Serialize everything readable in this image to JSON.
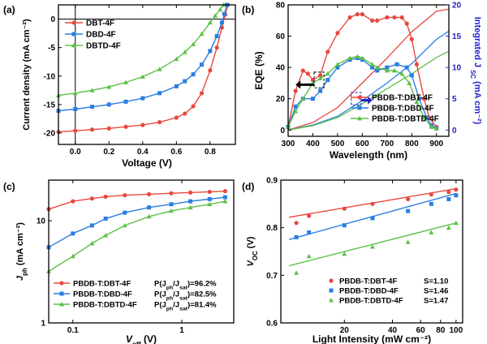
{
  "colors": {
    "red": "#e8483f",
    "blue": "#2a7ee0",
    "green": "#5cc048",
    "axis": "#000000",
    "right_axis": "#2222cc"
  },
  "chart_data": [
    {
      "panel_label": "(a)",
      "type": "line",
      "xlabel": "Voltage (V)",
      "ylabel": "Current density (mA cm⁻²)",
      "xlim": [
        -0.1,
        0.95
      ],
      "ylim": [
        -22,
        2.5
      ],
      "xticks": [
        0.0,
        0.2,
        0.4,
        0.6,
        0.8
      ],
      "xtick_labels": [
        "0.0",
        "0.2",
        "0.4",
        "0.6",
        "0.8"
      ],
      "yticks": [
        -20,
        -15,
        -10,
        -5,
        0
      ],
      "ytick_labels": [
        "-20",
        "-15",
        "-10",
        "-5",
        "0"
      ],
      "legend_position": "top-left",
      "series": [
        {
          "name": "DBT-4F",
          "color": "red",
          "marker": "circle",
          "x": [
            -0.1,
            0.0,
            0.1,
            0.2,
            0.3,
            0.4,
            0.5,
            0.6,
            0.65,
            0.7,
            0.75,
            0.8,
            0.84,
            0.87,
            0.89,
            0.905
          ],
          "y": [
            -19.8,
            -19.6,
            -19.4,
            -19.2,
            -18.9,
            -18.6,
            -18.1,
            -17.3,
            -16.6,
            -15.3,
            -13.0,
            -9.0,
            -5.0,
            -1.5,
            0.8,
            2.5
          ]
        },
        {
          "name": "DBD-4F",
          "color": "blue",
          "marker": "square",
          "x": [
            -0.1,
            0.0,
            0.1,
            0.2,
            0.3,
            0.4,
            0.5,
            0.6,
            0.65,
            0.7,
            0.75,
            0.8,
            0.84,
            0.87,
            0.885,
            0.9
          ],
          "y": [
            -16.1,
            -15.8,
            -15.4,
            -15.0,
            -14.5,
            -13.9,
            -13.0,
            -11.8,
            -10.9,
            -9.7,
            -8.0,
            -5.6,
            -3.0,
            -0.6,
            0.9,
            2.5
          ]
        },
        {
          "name": "DBTD-4F",
          "color": "green",
          "marker": "triangle",
          "x": [
            -0.1,
            0.0,
            0.1,
            0.2,
            0.3,
            0.4,
            0.5,
            0.6,
            0.65,
            0.7,
            0.75,
            0.8,
            0.83,
            0.86,
            0.88
          ],
          "y": [
            -13.4,
            -13.0,
            -12.5,
            -11.9,
            -11.1,
            -10.1,
            -8.8,
            -7.0,
            -5.8,
            -4.4,
            -2.6,
            -0.6,
            0.6,
            1.7,
            2.5
          ]
        }
      ]
    },
    {
      "panel_label": "(b)",
      "type": "line",
      "xlabel": "Wavelength (nm)",
      "ylabel": "EQE (%)",
      "ylabel_right": "Integrated J",
      "ylabel_right_sub": "SC",
      "ylabel_right_unit": "(mA cm⁻²)",
      "xlim": [
        300,
        950
      ],
      "ylim": [
        -4,
        80
      ],
      "ylim_right": [
        -1,
        20
      ],
      "xticks": [
        300,
        400,
        500,
        600,
        700,
        800,
        900
      ],
      "xtick_labels": [
        "300",
        "400",
        "500",
        "600",
        "700",
        "800",
        "900"
      ],
      "yticks": [
        0,
        20,
        40,
        60,
        80
      ],
      "ytick_labels": [
        "0",
        "20",
        "40",
        "60",
        "80"
      ],
      "yticks_right": [
        0,
        5,
        10,
        15,
        20
      ],
      "ytick_labels_right": [
        "0",
        "5",
        "10",
        "15",
        "20"
      ],
      "legend_position": "bottom-center",
      "series": [
        {
          "name": "PBDB-T:DBT-4F",
          "color": "red",
          "marker": "circle",
          "x": [
            300,
            330,
            360,
            380,
            400,
            430,
            460,
            500,
            550,
            580,
            600,
            640,
            660,
            700,
            730,
            760,
            780,
            800,
            820,
            850,
            870,
            900
          ],
          "y": [
            2,
            25,
            38,
            36,
            32,
            35,
            50,
            62,
            72,
            74,
            74,
            70,
            70,
            72,
            72,
            72,
            68,
            58,
            42,
            20,
            8,
            2
          ]
        },
        {
          "name": "PBDB-T:DBD-4F",
          "color": "blue",
          "marker": "square",
          "x": [
            300,
            330,
            360,
            400,
            430,
            460,
            500,
            550,
            580,
            600,
            640,
            660,
            700,
            740,
            780,
            800,
            830,
            860,
            880,
            900
          ],
          "y": [
            2,
            15,
            20,
            20,
            25,
            32,
            40,
            45,
            46,
            45,
            40,
            38,
            40,
            42,
            40,
            35,
            20,
            8,
            3,
            1
          ]
        },
        {
          "name": "PBDB-T:DBTD-4F",
          "color": "green",
          "marker": "triangle",
          "x": [
            300,
            330,
            360,
            400,
            430,
            460,
            500,
            550,
            580,
            600,
            640,
            660,
            700,
            730,
            760,
            790,
            820,
            850,
            880,
            900
          ],
          "y": [
            2,
            12,
            20,
            30,
            33,
            36,
            42,
            46,
            47,
            46,
            42,
            40,
            38,
            38,
            36,
            30,
            18,
            8,
            2,
            1
          ]
        }
      ],
      "integrated_series": [
        {
          "name": "PBDB-T:DBT-4F",
          "color": "red",
          "x": [
            300,
            400,
            500,
            600,
            700,
            800,
            900,
            950
          ],
          "y": [
            0,
            1.2,
            3.6,
            7.5,
            11.5,
            15.7,
            19.0,
            19.3
          ]
        },
        {
          "name": "PBDB-T:DBD-4F",
          "color": "blue",
          "x": [
            300,
            400,
            500,
            600,
            700,
            800,
            900,
            950
          ],
          "y": [
            0,
            0.8,
            2.2,
            4.7,
            7.5,
            10.6,
            14.5,
            15.8
          ]
        },
        {
          "name": "PBDB-T:DBTD-4F",
          "color": "green",
          "x": [
            300,
            400,
            500,
            600,
            700,
            800,
            900,
            950
          ],
          "y": [
            0,
            0.7,
            2.0,
            4.2,
            6.6,
            9.0,
            11.6,
            12.6
          ]
        }
      ]
    },
    {
      "panel_label": "(c)",
      "type": "scatter",
      "xlabel": "V",
      "xlabel_sub": "eff",
      "xlabel_unit": " (V)",
      "ylabel": "J",
      "ylabel_sub": "ph",
      "ylabel_unit": " (mA cm⁻²)",
      "xscale": "log",
      "yscale": "log",
      "xlim": [
        0.06,
        3
      ],
      "ylim": [
        1,
        25
      ],
      "xticks": [
        0.1,
        1
      ],
      "xtick_labels": [
        "0.1",
        "1"
      ],
      "yticks": [
        1,
        10
      ],
      "ytick_labels": [
        "1",
        "10"
      ],
      "legend_position": "bottom-left",
      "series": [
        {
          "name": "PBDB-T:DBT-4F",
          "annotation": "P(J",
          "annotation_sub1": "ph",
          "annotation_mid": "/J",
          "annotation_sub2": "sat",
          "annotation_end": ")=96.2%",
          "color": "red",
          "marker": "circle",
          "x": [
            0.06,
            0.1,
            0.15,
            0.2,
            0.3,
            0.5,
            0.8,
            1.2,
            1.8,
            2.5
          ],
          "y": [
            13,
            15.5,
            16.5,
            17.2,
            17.8,
            18.2,
            18.6,
            18.9,
            19.2,
            19.5
          ]
        },
        {
          "name": "PBDB-T:DBD-4F",
          "annotation": "P(J",
          "annotation_sub1": "ph",
          "annotation_mid": "/J",
          "annotation_sub2": "sat",
          "annotation_end": ")=82.5%",
          "color": "blue",
          "marker": "square",
          "x": [
            0.06,
            0.1,
            0.15,
            0.2,
            0.3,
            0.5,
            0.8,
            1.2,
            1.8,
            2.5
          ],
          "y": [
            5.5,
            7.5,
            9,
            10.5,
            12,
            13.5,
            14.5,
            15.5,
            16.3,
            17
          ]
        },
        {
          "name": "PBDB-T:DBTD-4F",
          "annotation": "P(J",
          "annotation_sub1": "ph",
          "annotation_mid": "/J",
          "annotation_sub2": "sat",
          "annotation_end": ")=81.4%",
          "color": "green",
          "marker": "triangle",
          "x": [
            0.06,
            0.1,
            0.15,
            0.2,
            0.3,
            0.5,
            0.8,
            1.2,
            1.8,
            2.5
          ],
          "y": [
            3.2,
            4.5,
            6,
            7.2,
            9,
            11,
            12.5,
            13.5,
            14.5,
            15.5
          ]
        }
      ]
    },
    {
      "panel_label": "(d)",
      "type": "scatter",
      "xlabel": "Light Intensity (mW cm⁻²)",
      "ylabel": "V",
      "ylabel_sub": "OC",
      "ylabel_unit": " (V)",
      "xscale": "log",
      "xlim": [
        8,
        110
      ],
      "ylim": [
        0.6,
        0.9
      ],
      "xticks": [
        20,
        40,
        60,
        80,
        100
      ],
      "xtick_labels": [
        "20",
        "40",
        "60",
        "80",
        "100"
      ],
      "yticks": [
        0.6,
        0.7,
        0.8,
        0.9
      ],
      "ytick_labels": [
        "0.6",
        "0.7",
        "0.8",
        "0.9"
      ],
      "legend_position": "bottom-right",
      "series": [
        {
          "name": "PBDB-T:DBT-4F",
          "slope_label": "S=1.10",
          "color": "red",
          "marker": "circle",
          "x": [
            10,
            12,
            20,
            30,
            50,
            70,
            90,
            100
          ],
          "y": [
            0.81,
            0.825,
            0.84,
            0.85,
            0.86,
            0.87,
            0.875,
            0.88
          ],
          "fit": [
            0.822,
            0.882
          ]
        },
        {
          "name": "PBDB-T:DBD-4F",
          "slope_label": "S=1.46",
          "color": "blue",
          "marker": "square",
          "x": [
            10,
            12,
            20,
            30,
            50,
            70,
            90,
            100
          ],
          "y": [
            0.78,
            0.79,
            0.805,
            0.82,
            0.835,
            0.85,
            0.86,
            0.868
          ],
          "fit": [
            0.775,
            0.872
          ]
        },
        {
          "name": "PBDB-T:DBTD-4F",
          "slope_label": "S=1.47",
          "color": "green",
          "marker": "triangle",
          "x": [
            10,
            12,
            20,
            30,
            50,
            70,
            90,
            100
          ],
          "y": [
            0.705,
            0.74,
            0.745,
            0.76,
            0.77,
            0.79,
            0.8,
            0.81
          ],
          "fit": [
            0.72,
            0.81
          ]
        }
      ]
    }
  ]
}
